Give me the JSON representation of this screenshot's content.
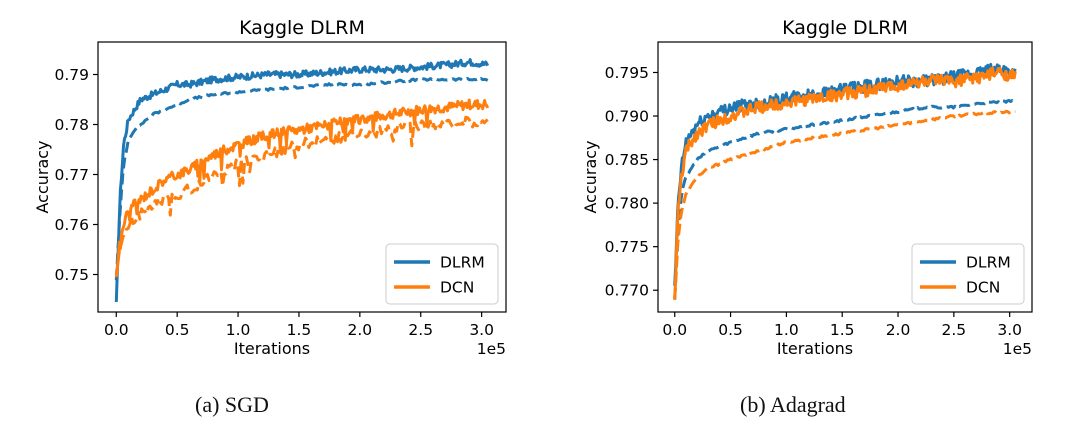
{
  "captions": [
    "(a) SGD",
    "(b) Adagrad"
  ],
  "chart_data": [
    {
      "type": "line",
      "title": "Kaggle DLRM",
      "xlabel": "Iterations",
      "ylabel": "Accuracy",
      "x_offset_text": "1e5",
      "xlim": [
        -0.15,
        3.2
      ],
      "ylim": [
        0.7425,
        0.7965
      ],
      "xticks": [
        0.0,
        0.5,
        1.0,
        1.5,
        2.0,
        2.5,
        3.0
      ],
      "xtick_labels": [
        "0.0",
        "0.5",
        "1.0",
        "1.5",
        "2.0",
        "2.5",
        "3.0"
      ],
      "yticks": [
        0.75,
        0.76,
        0.77,
        0.78,
        0.79
      ],
      "ytick_labels": [
        "0.75",
        "0.76",
        "0.77",
        "0.78",
        "0.79"
      ],
      "legend": {
        "placement": "lower-right",
        "entries": [
          "DLRM",
          "DCN"
        ]
      },
      "colors": {
        "DLRM": "#1f77b4",
        "DCN": "#ff7f0e"
      },
      "series": [
        {
          "name": "DLRM",
          "style": "solid",
          "x": [
            0.0,
            0.03,
            0.06,
            0.1,
            0.15,
            0.2,
            0.3,
            0.4,
            0.5,
            0.6,
            0.8,
            1.0,
            1.25,
            1.5,
            1.75,
            2.0,
            2.25,
            2.5,
            2.75,
            2.9,
            3.05
          ],
          "y": [
            0.744,
            0.765,
            0.776,
            0.781,
            0.783,
            0.785,
            0.786,
            0.787,
            0.788,
            0.788,
            0.789,
            0.7895,
            0.79,
            0.79,
            0.7905,
            0.791,
            0.791,
            0.7915,
            0.792,
            0.7925,
            0.792
          ]
        },
        {
          "name": "DLRM",
          "style": "dashed",
          "x": [
            0.0,
            0.03,
            0.06,
            0.1,
            0.15,
            0.2,
            0.3,
            0.4,
            0.5,
            0.6,
            0.8,
            1.0,
            1.25,
            1.5,
            1.75,
            2.0,
            2.25,
            2.5,
            2.75,
            3.05
          ],
          "y": [
            0.749,
            0.762,
            0.772,
            0.777,
            0.779,
            0.78,
            0.782,
            0.783,
            0.784,
            0.785,
            0.786,
            0.7865,
            0.787,
            0.7875,
            0.788,
            0.788,
            0.7885,
            0.789,
            0.789,
            0.789
          ]
        },
        {
          "name": "DCN",
          "style": "solid",
          "x": [
            0.0,
            0.03,
            0.06,
            0.1,
            0.2,
            0.3,
            0.4,
            0.5,
            0.6,
            0.8,
            1.0,
            1.25,
            1.5,
            1.75,
            2.0,
            2.25,
            2.5,
            2.75,
            2.9,
            3.05
          ],
          "y": [
            0.75,
            0.757,
            0.76,
            0.763,
            0.765,
            0.767,
            0.769,
            0.77,
            0.771,
            0.774,
            0.776,
            0.778,
            0.779,
            0.78,
            0.781,
            0.782,
            0.783,
            0.7835,
            0.784,
            0.784
          ]
        },
        {
          "name": "DCN",
          "style": "dashed",
          "x": [
            0.0,
            0.03,
            0.06,
            0.1,
            0.2,
            0.3,
            0.4,
            0.5,
            0.6,
            0.8,
            1.0,
            1.25,
            1.5,
            1.75,
            2.0,
            2.25,
            2.5,
            2.75,
            3.05
          ],
          "y": [
            0.749,
            0.755,
            0.758,
            0.76,
            0.762,
            0.764,
            0.765,
            0.766,
            0.767,
            0.77,
            0.772,
            0.774,
            0.776,
            0.777,
            0.778,
            0.779,
            0.78,
            0.78,
            0.781
          ]
        }
      ]
    },
    {
      "type": "line",
      "title": "Kaggle DLRM",
      "xlabel": "Iterations",
      "ylabel": "Accuracy",
      "x_offset_text": "1e5",
      "xlim": [
        -0.15,
        3.2
      ],
      "ylim": [
        0.7675,
        0.7985
      ],
      "xticks": [
        0.0,
        0.5,
        1.0,
        1.5,
        2.0,
        2.5,
        3.0
      ],
      "xtick_labels": [
        "0.0",
        "0.5",
        "1.0",
        "1.5",
        "2.0",
        "2.5",
        "3.0"
      ],
      "yticks": [
        0.77,
        0.775,
        0.78,
        0.785,
        0.79,
        0.795
      ],
      "ytick_labels": [
        "0.770",
        "0.775",
        "0.780",
        "0.785",
        "0.790",
        "0.795"
      ],
      "legend": {
        "placement": "lower-right",
        "entries": [
          "DLRM",
          "DCN"
        ]
      },
      "colors": {
        "DLRM": "#1f77b4",
        "DCN": "#ff7f0e"
      },
      "series": [
        {
          "name": "DLRM",
          "style": "solid",
          "x": [
            0.0,
            0.03,
            0.06,
            0.1,
            0.2,
            0.3,
            0.5,
            0.75,
            1.0,
            1.25,
            1.5,
            1.75,
            2.0,
            2.25,
            2.5,
            2.75,
            2.9,
            3.05
          ],
          "y": [
            0.77,
            0.78,
            0.784,
            0.787,
            0.789,
            0.79,
            0.791,
            0.7915,
            0.792,
            0.7925,
            0.793,
            0.7935,
            0.794,
            0.794,
            0.7945,
            0.795,
            0.7955,
            0.795
          ]
        },
        {
          "name": "DLRM",
          "style": "dashed",
          "x": [
            0.0,
            0.03,
            0.06,
            0.1,
            0.2,
            0.3,
            0.5,
            0.75,
            1.0,
            1.25,
            1.5,
            1.75,
            2.0,
            2.25,
            2.5,
            2.75,
            3.05
          ],
          "y": [
            0.769,
            0.777,
            0.781,
            0.783,
            0.785,
            0.786,
            0.787,
            0.788,
            0.7885,
            0.789,
            0.7895,
            0.79,
            0.7905,
            0.791,
            0.791,
            0.7915,
            0.7917
          ]
        },
        {
          "name": "DCN",
          "style": "solid",
          "x": [
            0.0,
            0.03,
            0.06,
            0.1,
            0.2,
            0.3,
            0.5,
            0.75,
            1.0,
            1.25,
            1.5,
            1.75,
            2.0,
            2.25,
            2.5,
            2.75,
            2.9,
            3.05
          ],
          "y": [
            0.769,
            0.779,
            0.783,
            0.786,
            0.788,
            0.789,
            0.79,
            0.791,
            0.7915,
            0.792,
            0.7925,
            0.793,
            0.7935,
            0.794,
            0.794,
            0.7945,
            0.795,
            0.7945
          ]
        },
        {
          "name": "DCN",
          "style": "dashed",
          "x": [
            0.0,
            0.03,
            0.06,
            0.1,
            0.2,
            0.3,
            0.5,
            0.75,
            1.0,
            1.25,
            1.5,
            1.75,
            2.0,
            2.25,
            2.5,
            2.75,
            3.05
          ],
          "y": [
            0.769,
            0.776,
            0.779,
            0.781,
            0.783,
            0.784,
            0.785,
            0.786,
            0.787,
            0.7875,
            0.788,
            0.7885,
            0.789,
            0.7895,
            0.79,
            0.7903,
            0.7905
          ]
        }
      ]
    }
  ]
}
